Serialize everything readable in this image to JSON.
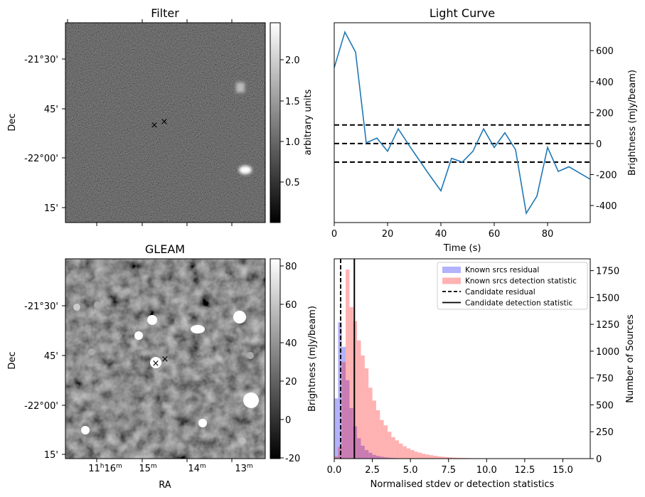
{
  "panels": {
    "filter": {
      "title": "Filter",
      "ylabel": "Dec",
      "dec_ticks": [
        "-21°30'",
        "45'",
        "-22°00'",
        "15'"
      ],
      "colorbar": {
        "label": "arbitrary units",
        "ticks": [
          "2.0",
          "1.5",
          "1.0",
          "0.5"
        ]
      }
    },
    "gleam": {
      "title": "GLEAM",
      "ylabel": "Dec",
      "xlabel": "RA",
      "dec_ticks": [
        "-21°30'",
        "45'",
        "-22°00'",
        "15'"
      ],
      "ra_ticks": [
        {
          "main": "11",
          "sup1": "h",
          "sub": "16",
          "sup2": "m"
        },
        {
          "main": "15",
          "sup1": "",
          "sub": "",
          "sup2": "m"
        },
        {
          "main": "14",
          "sup1": "",
          "sub": "",
          "sup2": "m"
        },
        {
          "main": "13",
          "sup1": "",
          "sub": "",
          "sup2": "m"
        }
      ],
      "colorbar": {
        "ticks": [
          "80",
          "60",
          "40",
          "20",
          "0",
          "-20"
        ]
      }
    }
  },
  "markers": {
    "candidate": "×",
    "known": "×",
    "candidate_color": "#d62728",
    "known_color": "#1f1fd0"
  },
  "chart_data": [
    {
      "type": "line",
      "title": "Light Curve",
      "xlabel": "Time (s)",
      "ylabel": "Brightness (mJy/beam)",
      "xlim": [
        0,
        96
      ],
      "ylim": [
        -510,
        780
      ],
      "x_ticks": [
        0,
        20,
        40,
        60,
        80
      ],
      "y_ticks": [
        600,
        400,
        200,
        0,
        -200,
        -400
      ],
      "series": [
        {
          "color": "#1f77b4",
          "x": [
            0,
            4,
            8,
            12,
            16,
            20,
            24,
            28,
            32,
            36,
            40,
            44,
            48,
            52,
            56,
            60,
            64,
            68,
            72,
            76,
            80,
            84,
            88,
            92,
            96
          ],
          "y": [
            490,
            720,
            590,
            5,
            35,
            -50,
            95,
            -10,
            -110,
            -210,
            -305,
            -95,
            -120,
            -50,
            95,
            -25,
            70,
            -40,
            -450,
            -340,
            -25,
            -180,
            -150,
            -190,
            -230
          ]
        }
      ],
      "hlines": [
        {
          "y": 120,
          "style": "dashed"
        },
        {
          "y": 0,
          "style": "dashed"
        },
        {
          "y": -120,
          "style": "dashed"
        }
      ]
    },
    {
      "type": "histogram",
      "xlabel": "Normalised stdev or detection statistics",
      "ylabel_left": "Brightness (mJy/beam)",
      "ylabel_right": "Number of Sources",
      "xlim": [
        0,
        16.8
      ],
      "ylim": [
        0,
        1860
      ],
      "x_ticks": [
        "0.0",
        "2.5",
        "5.0",
        "7.5",
        "10.0",
        "12.5",
        "15.0"
      ],
      "y_ticks": [
        1750,
        1500,
        1250,
        1000,
        750,
        500,
        250,
        0
      ],
      "bin_width": 0.25,
      "legend_position": "top-right",
      "series": [
        {
          "name": "Known srcs residual",
          "color": "#0000ff",
          "alpha": 0.3,
          "values": [
            560,
            1270,
            1040,
            730,
            470,
            300,
            190,
            120,
            80,
            55,
            35,
            25,
            18,
            12,
            8,
            6,
            4,
            3,
            2,
            2,
            1,
            1
          ]
        },
        {
          "name": "Known srcs detection statistic",
          "color": "#ff0000",
          "alpha": 0.3,
          "values": [
            20,
            110,
            900,
            1760,
            1410,
            1280,
            1100,
            960,
            840,
            660,
            540,
            450,
            360,
            310,
            250,
            200,
            170,
            140,
            115,
            95,
            80,
            65,
            55,
            45,
            38,
            32,
            27,
            22,
            18,
            15,
            12,
            10,
            8,
            7,
            6,
            5,
            4,
            4,
            3,
            3,
            2,
            2,
            2,
            1,
            1,
            1,
            1,
            1,
            1,
            1,
            1,
            1,
            1,
            1,
            1,
            1,
            1,
            1,
            1,
            1,
            1,
            1,
            1,
            1
          ]
        }
      ],
      "vlines": [
        {
          "name": "Candidate residual",
          "x": 0.42,
          "style": "dashed"
        },
        {
          "name": "Candidate detection statistic",
          "x": 1.32,
          "style": "solid"
        }
      ]
    }
  ]
}
